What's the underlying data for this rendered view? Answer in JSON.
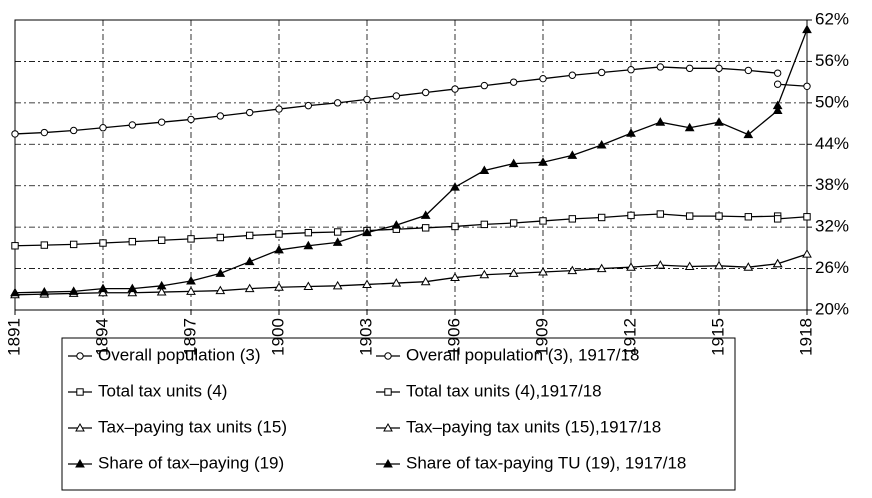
{
  "chart_data": {
    "type": "line",
    "xlim": [
      1891,
      1918
    ],
    "xticks": [
      1891,
      1894,
      1897,
      1900,
      1903,
      1906,
      1909,
      1912,
      1915,
      1918
    ],
    "ylim": [
      20,
      62
    ],
    "yticks": [
      {
        "value": 20,
        "label": "20%"
      },
      {
        "value": 26,
        "label": "26%"
      },
      {
        "value": 32,
        "label": "32%"
      },
      {
        "value": 38,
        "label": "38%"
      },
      {
        "value": 44,
        "label": "44%"
      },
      {
        "value": 50,
        "label": "50%"
      },
      {
        "value": 56,
        "label": "56%"
      },
      {
        "value": 62,
        "label": "62%"
      }
    ],
    "grid": true,
    "series": [
      {
        "name": "Overall population (3)",
        "color": "#000000",
        "marker": "circle",
        "x": [
          1891,
          1892,
          1893,
          1894,
          1895,
          1896,
          1897,
          1898,
          1899,
          1900,
          1901,
          1902,
          1903,
          1904,
          1905,
          1906,
          1907,
          1908,
          1909,
          1910,
          1911,
          1912,
          1913,
          1914,
          1915,
          1916,
          1917
        ],
        "values": [
          45.5,
          45.7,
          46.0,
          46.4,
          46.8,
          47.2,
          47.6,
          48.1,
          48.6,
          49.1,
          49.6,
          50.0,
          50.5,
          51.0,
          51.5,
          52.0,
          52.5,
          53.0,
          53.5,
          54.0,
          54.4,
          54.8,
          55.2,
          55.0,
          55.0,
          54.7,
          54.3
        ]
      },
      {
        "name": "Overall population (3), 1917/18",
        "color": "#000000",
        "marker": "circle",
        "x": [
          1917,
          1918
        ],
        "values": [
          52.7,
          52.4
        ]
      },
      {
        "name": "Total tax units (4)",
        "color": "#000000",
        "marker": "square",
        "x": [
          1891,
          1892,
          1893,
          1894,
          1895,
          1896,
          1897,
          1898,
          1899,
          1900,
          1901,
          1902,
          1903,
          1904,
          1905,
          1906,
          1907,
          1908,
          1909,
          1910,
          1911,
          1912,
          1913,
          1914,
          1915,
          1916,
          1917
        ],
        "values": [
          29.3,
          29.4,
          29.5,
          29.7,
          29.9,
          30.1,
          30.3,
          30.5,
          30.8,
          31.0,
          31.2,
          31.3,
          31.5,
          31.7,
          31.9,
          32.1,
          32.4,
          32.6,
          32.9,
          33.2,
          33.4,
          33.7,
          33.9,
          33.6,
          33.6,
          33.5,
          33.6
        ]
      },
      {
        "name": "Total tax units (4),1917/18",
        "color": "#000000",
        "marker": "square",
        "x": [
          1917,
          1918
        ],
        "values": [
          33.2,
          33.5
        ]
      },
      {
        "name": "Tax–paying tax units (15)",
        "color": "#000000",
        "marker": "triangle",
        "x": [
          1891,
          1892,
          1893,
          1894,
          1895,
          1896,
          1897,
          1898,
          1899,
          1900,
          1901,
          1902,
          1903,
          1904,
          1905,
          1906,
          1907,
          1908,
          1909,
          1910,
          1911,
          1912,
          1913,
          1914,
          1915,
          1916,
          1917
        ],
        "values": [
          22.2,
          22.3,
          22.4,
          22.5,
          22.5,
          22.6,
          22.7,
          22.8,
          23.1,
          23.3,
          23.4,
          23.5,
          23.7,
          23.9,
          24.1,
          24.7,
          25.1,
          25.3,
          25.5,
          25.7,
          26.0,
          26.2,
          26.5,
          26.3,
          26.4,
          26.2,
          26.7
        ]
      },
      {
        "name": "Tax–paying tax units (15),1917/18",
        "color": "#000000",
        "marker": "triangle",
        "x": [
          1917,
          1918
        ],
        "values": [
          26.7,
          28.1
        ]
      },
      {
        "name": "Share of tax–paying (19)",
        "color": "#000000",
        "marker": "triangle-filled",
        "x": [
          1891,
          1892,
          1893,
          1894,
          1895,
          1896,
          1897,
          1898,
          1899,
          1900,
          1901,
          1902,
          1903,
          1904,
          1905,
          1906,
          1907,
          1908,
          1909,
          1910,
          1911,
          1912,
          1913,
          1914,
          1915,
          1916,
          1917
        ],
        "values": [
          22.5,
          22.6,
          22.7,
          23.1,
          23.1,
          23.5,
          24.2,
          25.3,
          27.0,
          28.7,
          29.3,
          29.8,
          31.2,
          32.3,
          33.7,
          37.8,
          40.2,
          41.2,
          41.4,
          42.4,
          43.9,
          45.6,
          47.2,
          46.4,
          47.2,
          45.4,
          48.9
        ]
      },
      {
        "name": "Share of tax-paying TU (19), 1917/18",
        "color": "#000000",
        "marker": "triangle-filled",
        "x": [
          1917,
          1918
        ],
        "values": [
          49.6,
          60.6
        ]
      }
    ]
  }
}
